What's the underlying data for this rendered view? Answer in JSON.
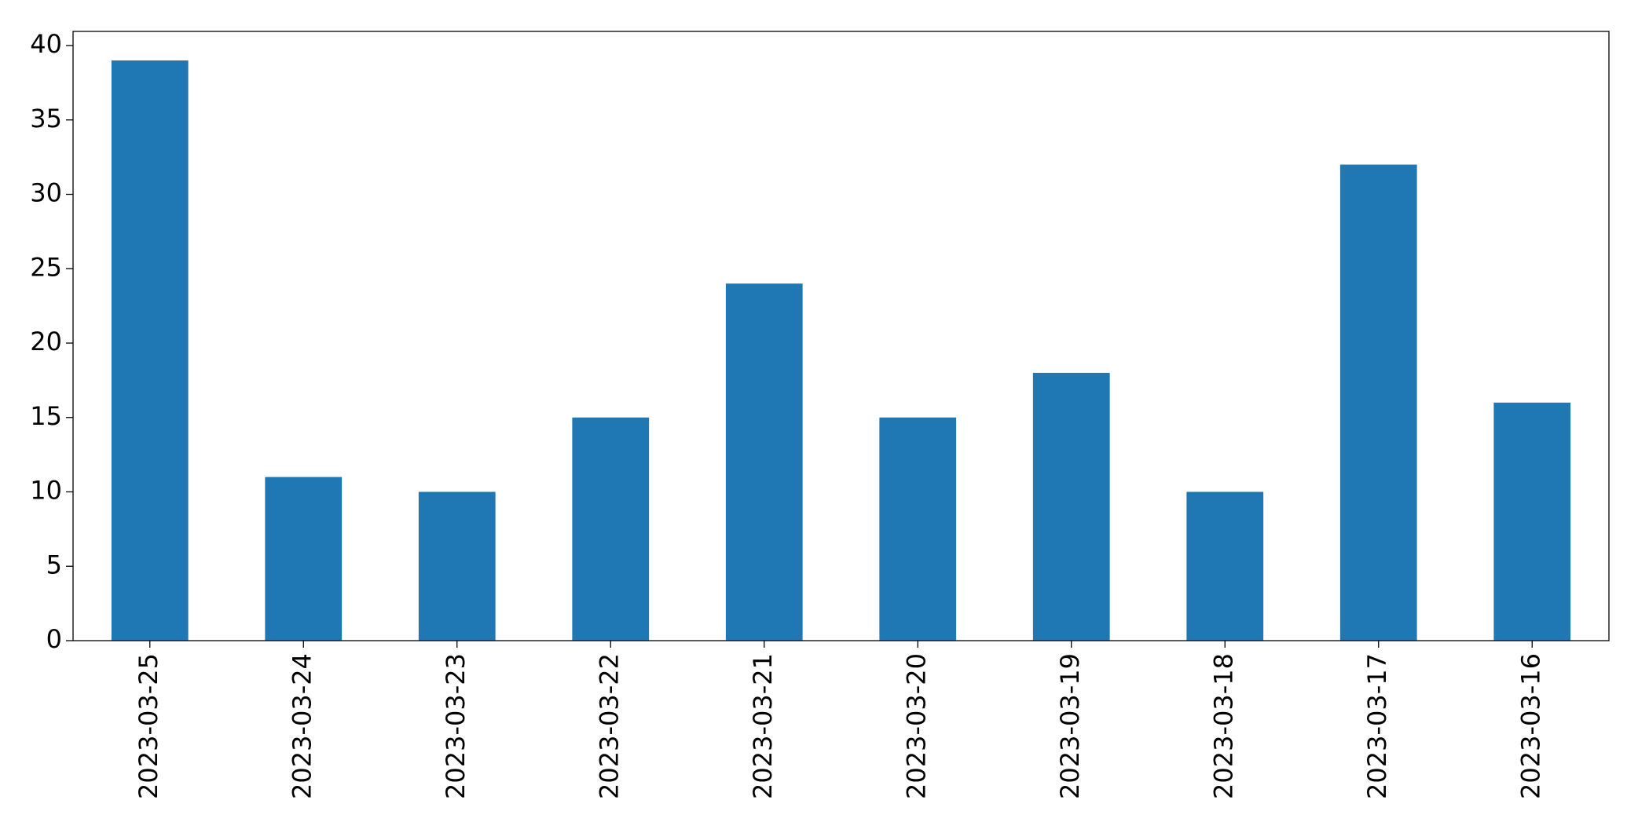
{
  "chart_data": {
    "type": "bar",
    "categories": [
      "2023-03-25",
      "2023-03-24",
      "2023-03-23",
      "2023-03-22",
      "2023-03-21",
      "2023-03-20",
      "2023-03-19",
      "2023-03-18",
      "2023-03-17",
      "2023-03-16"
    ],
    "values": [
      39,
      11,
      10,
      15,
      24,
      15,
      18,
      10,
      32,
      16
    ],
    "color": "#1f77b4",
    "ylim": [
      0,
      40.95
    ],
    "yticks": [
      0,
      5,
      10,
      15,
      20,
      25,
      30,
      35,
      40
    ],
    "grid": false
  }
}
